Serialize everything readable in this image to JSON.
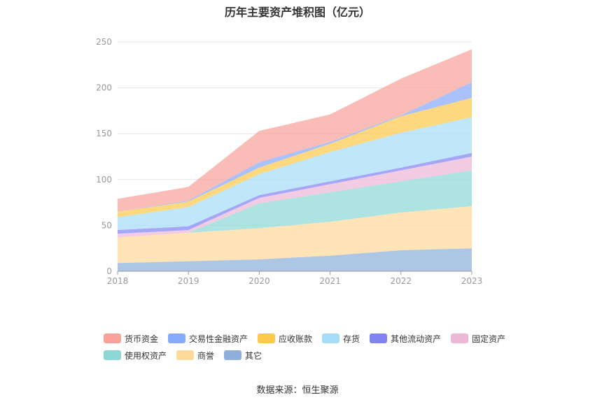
{
  "chart_data": {
    "type": "area",
    "stacked": true,
    "title": "历年主要资产堆积图（亿元）",
    "source": "数据来源：恒生聚源",
    "categories": [
      "2018",
      "2019",
      "2020",
      "2021",
      "2022",
      "2023"
    ],
    "ylim": [
      0,
      250
    ],
    "yticks": [
      0,
      50,
      100,
      150,
      200,
      250
    ],
    "grid": true,
    "legend_position": "bottom",
    "series": [
      {
        "name": "其它",
        "color": "#8fb0dc",
        "values": [
          9,
          11,
          13,
          17,
          23,
          25
        ]
      },
      {
        "name": "商誉",
        "color": "#fdd99a",
        "values": [
          28,
          31,
          34,
          37,
          41,
          46
        ]
      },
      {
        "name": "使用权资产",
        "color": "#8dd8d4",
        "values": [
          0,
          0,
          27,
          32,
          34,
          39
        ]
      },
      {
        "name": "固定资产",
        "color": "#ebb8d8",
        "values": [
          4,
          3,
          6,
          9,
          12,
          15
        ]
      },
      {
        "name": "其他流动资产",
        "color": "#8283f2",
        "values": [
          4,
          4,
          3,
          3,
          3,
          4
        ]
      },
      {
        "name": "存货",
        "color": "#a8ddf8",
        "values": [
          14,
          21,
          23,
          32,
          38,
          39
        ]
      },
      {
        "name": "应收账款",
        "color": "#fcc94c",
        "values": [
          6,
          6,
          7,
          9,
          18,
          21
        ]
      },
      {
        "name": "交易性金融资产",
        "color": "#88aafc",
        "values": [
          0,
          1,
          6,
          2,
          1,
          17
        ]
      },
      {
        "name": "货币资金",
        "color": "#f8a29a",
        "values": [
          14,
          15,
          34,
          30,
          40,
          36
        ]
      }
    ],
    "legend_rows": [
      [
        "货币资金",
        "交易性金融资产",
        "应收账款",
        "存货",
        "其他流动资产",
        "固定资产"
      ],
      [
        "使用权资产",
        "商誉",
        "其它"
      ]
    ]
  }
}
